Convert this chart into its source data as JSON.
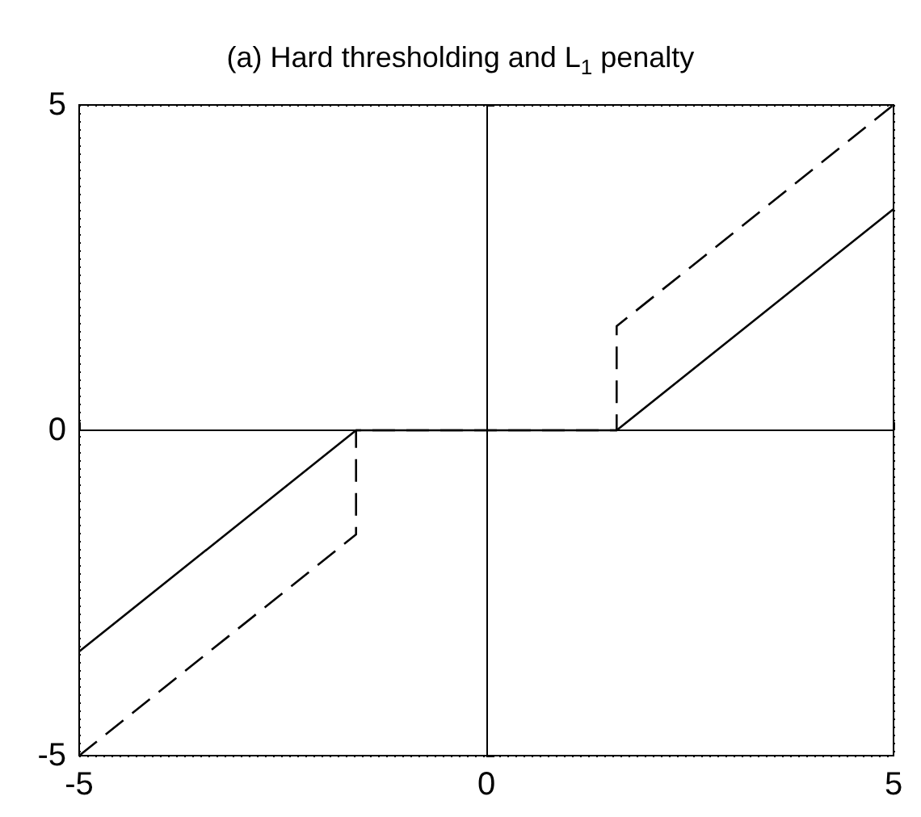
{
  "chart_data": {
    "type": "line",
    "title": "(a) Hard thresholding and L$_{1}$ penalty",
    "series": [
      {
        "color": "#000000",
        "line_style": "solid",
        "x": [
          -5,
          -1.6,
          1.6,
          5
        ],
        "values": [
          -3.4,
          0,
          0,
          3.4
        ]
      },
      {
        "color": "#000000",
        "line_style": "dashed",
        "x": [
          -5,
          -1.6,
          -1.6,
          1.6,
          1.6,
          5
        ],
        "values": [
          -5,
          -1.6,
          0,
          0,
          1.6,
          5
        ]
      }
    ],
    "xlim": [
      -5,
      5
    ],
    "ylim": [
      -5,
      5
    ],
    "xticks": [
      -5,
      0,
      5
    ],
    "yticks": [
      -5,
      0,
      5
    ],
    "grid": true
  }
}
